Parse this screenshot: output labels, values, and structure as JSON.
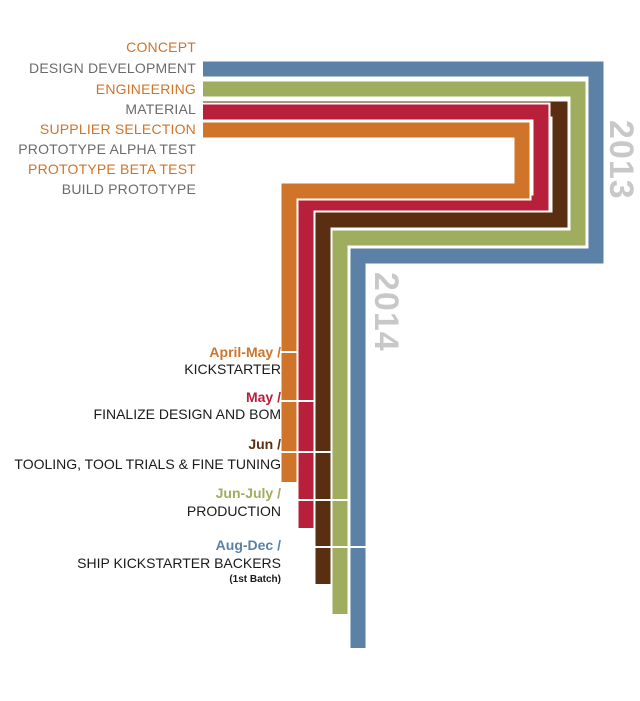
{
  "colors": {
    "orange": "#d0742a",
    "gray_text": "#6b6b6b",
    "blue": "#5b82a6",
    "green": "#9fae5e",
    "brown": "#5a2e10",
    "red": "#b81f3a",
    "year": "#c8c8c8"
  },
  "phases": [
    {
      "label": "CONCEPT",
      "color": "#d0742a"
    },
    {
      "label": "DESIGN DEVELOPMENT",
      "color": "#6b6b6b"
    },
    {
      "label": "ENGINEERING",
      "color": "#d0742a"
    },
    {
      "label": "MATERIAL",
      "color": "#6b6b6b"
    },
    {
      "label": "SUPPLIER SELECTION",
      "color": "#d0742a"
    },
    {
      "label": "PROTOTYPE ALPHA TEST",
      "color": "#6b6b6b"
    },
    {
      "label": "PROTOTYPE BETA TEST",
      "color": "#d0742a"
    },
    {
      "label": "BUILD PROTOTYPE",
      "color": "#6b6b6b"
    }
  ],
  "years": {
    "first": "2013",
    "second": "2014"
  },
  "milestones": [
    {
      "date": "April-May /",
      "text": "KICKSTARTER",
      "note": "",
      "color": "#d0742a"
    },
    {
      "date": "May /",
      "text": "FINALIZE DESIGN AND BOM",
      "note": "",
      "color": "#b81f3a"
    },
    {
      "date": "Jun /",
      "text": "TOOLING, TOOL TRIALS & FINE TUNING",
      "note": "",
      "color": "#5a2e10"
    },
    {
      "date": "Jun-July /",
      "text": "PRODUCTION",
      "note": "",
      "color": "#9fae5e"
    },
    {
      "date": "Aug-Dec /",
      "text": "SHIP KICKSTARTER BACKERS",
      "note": "(1st Batch)",
      "color": "#5b82a6"
    }
  ]
}
